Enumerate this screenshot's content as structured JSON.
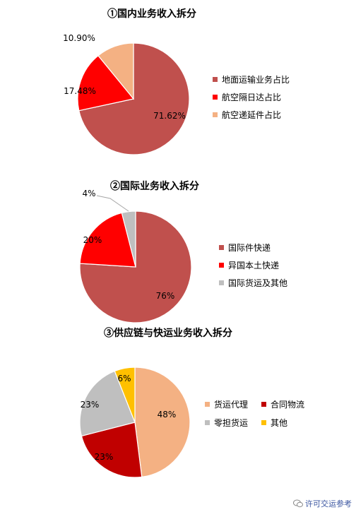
{
  "chart_data": [
    {
      "type": "pie",
      "title": "①国内业务收入拆分",
      "slices": [
        {
          "name": "地面运输业务占比",
          "value": 71.62,
          "label": "71.62%",
          "color": "#c0504d"
        },
        {
          "name": "航空隔日达占比",
          "value": 17.48,
          "label": "17.48%",
          "color": "#ff0000"
        },
        {
          "name": "航空递延件占比",
          "value": 10.9,
          "label": "10.90%",
          "color": "#f4b183"
        }
      ],
      "legend": "right"
    },
    {
      "type": "pie",
      "title": "②国际业务收入拆分",
      "slices": [
        {
          "name": "国际件快递",
          "value": 76,
          "label": "76%",
          "color": "#c0504d"
        },
        {
          "name": "异国本土快递",
          "value": 20,
          "label": "20%",
          "color": "#ff0000"
        },
        {
          "name": "国际货运及其他",
          "value": 4,
          "label": "4%",
          "color": "#bfbfbf"
        }
      ],
      "legend": "right"
    },
    {
      "type": "pie",
      "title": "③供应链与快运业务收入拆分",
      "slices": [
        {
          "name": "货运代理",
          "value": 48,
          "label": "48%",
          "color": "#f4b183"
        },
        {
          "name": "合同物流",
          "value": 23,
          "label": "23%",
          "color": "#c00000"
        },
        {
          "name": "零担货运",
          "value": 23,
          "label": "23%",
          "color": "#bfbfbf"
        },
        {
          "name": "其他",
          "value": 6,
          "label": "6%",
          "color": "#ffc000"
        }
      ],
      "legend": "right"
    }
  ],
  "watermark": {
    "text": "许可交运参考",
    "icon": "wechat-icon"
  }
}
